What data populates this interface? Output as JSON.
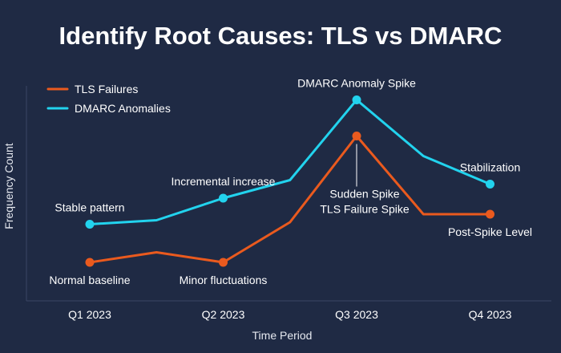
{
  "chart_data": {
    "type": "line",
    "title": "Identify Root Causes: TLS vs DMARC",
    "xlabel": "Time Period",
    "ylabel": "Frequency Count",
    "categories": [
      "Q1 2023",
      "Q2 2023",
      "Q3 2023",
      "Q4 2023"
    ],
    "x": [
      0,
      0.5,
      1,
      1.5,
      2,
      2.5,
      3
    ],
    "ylim": [
      0,
      100
    ],
    "grid": false,
    "legend_position": "top-left",
    "series": [
      {
        "name": "TLS Failures",
        "color": "#ea5a1e",
        "values": [
          22,
          27,
          22,
          42,
          85,
          46,
          46
        ],
        "markers": [
          0,
          2,
          4,
          6
        ]
      },
      {
        "name": "DMARC Anomalies",
        "color": "#22d3ee",
        "values": [
          41,
          43,
          54,
          63,
          103,
          75,
          61
        ],
        "markers": [
          0,
          2,
          4,
          6
        ]
      }
    ],
    "annotations": [
      {
        "text": "Stable pattern",
        "x": 0,
        "y": 41,
        "pos": "above"
      },
      {
        "text": "Normal baseline",
        "x": 0,
        "y": 22,
        "pos": "below"
      },
      {
        "text": "Incremental increase",
        "x": 1,
        "y": 54,
        "pos": "above"
      },
      {
        "text": "Minor fluctuations",
        "x": 1,
        "y": 22,
        "pos": "below"
      },
      {
        "text": "DMARC Anomaly Spike",
        "x": 2,
        "y": 103,
        "pos": "above"
      },
      {
        "text": "Sudden Spike",
        "x": 2,
        "y": 85,
        "pos": "right-below",
        "line": 1
      },
      {
        "text": "TLS Failure Spike",
        "x": 2,
        "y": 85,
        "pos": "right-below",
        "line": 2
      },
      {
        "text": "Stabilization",
        "x": 3,
        "y": 61,
        "pos": "above"
      },
      {
        "text": "Post-Spike Level",
        "x": 3,
        "y": 46,
        "pos": "below"
      }
    ]
  }
}
